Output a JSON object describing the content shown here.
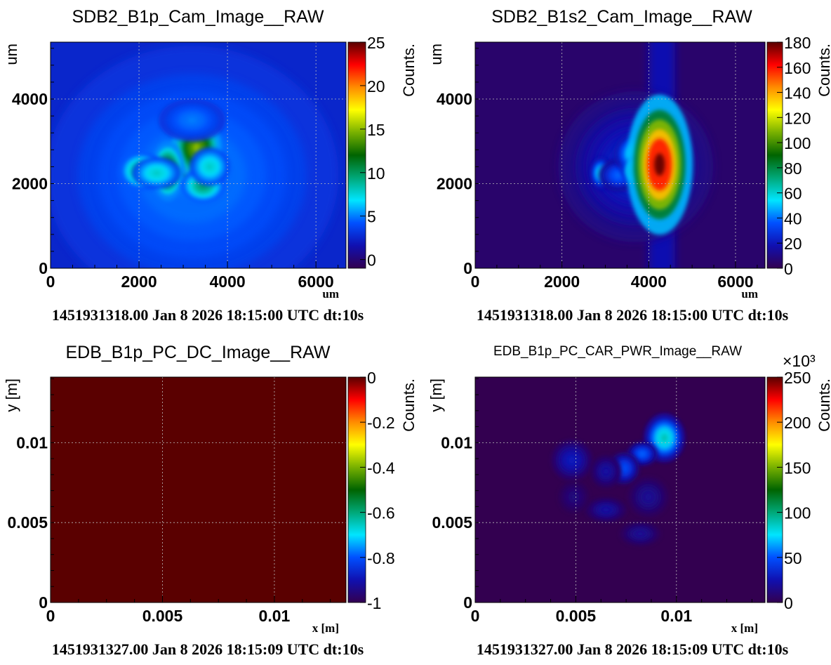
{
  "colormap": [
    "#330050",
    "#1010b0",
    "#0050ff",
    "#00e5ff",
    "#00a878",
    "#006400",
    "#78b000",
    "#ffff00",
    "#ff8c00",
    "#ff0000",
    "#5a0000"
  ],
  "chart_data": [
    {
      "type": "heatmap",
      "title": "SDB2_B1p_Cam_Image__RAW",
      "xlabel": "um",
      "ylabel": "um",
      "zlabel": "Counts.",
      "xlim": [
        0,
        6680
      ],
      "ylim": [
        0,
        5345
      ],
      "zlim": [
        -1,
        25
      ],
      "xticks": [
        0,
        2000,
        4000,
        6000
      ],
      "xtick_labels": [
        "0",
        "2000",
        "4000",
        "6000"
      ],
      "yticks": [
        0,
        2000,
        4000
      ],
      "ytick_labels": [
        "0",
        "2000",
        "4000"
      ],
      "zticks": [
        0,
        5,
        10,
        15,
        20,
        25
      ],
      "ztick_labels": [
        "0",
        "5",
        "10",
        "15",
        "20",
        "25"
      ],
      "background": 2.5,
      "grid": true,
      "peaks": [
        {
          "x": 3200,
          "y": 2200,
          "z": 5,
          "sx": 1300,
          "sy": 1200
        },
        {
          "x": 3100,
          "y": 2600,
          "z": 24,
          "sx": 180,
          "sy": 220
        },
        {
          "x": 3300,
          "y": 2850,
          "z": 15,
          "sx": 220,
          "sy": 300
        },
        {
          "x": 2650,
          "y": 2300,
          "z": 13,
          "sx": 150,
          "sy": 280
        },
        {
          "x": 2050,
          "y": 2300,
          "z": 10,
          "sx": 200,
          "sy": 180
        },
        {
          "x": 2400,
          "y": 2250,
          "z": 8,
          "sx": 220,
          "sy": 150
        },
        {
          "x": 3450,
          "y": 1950,
          "z": 10,
          "sx": 200,
          "sy": 160
        },
        {
          "x": 3600,
          "y": 2400,
          "z": 8,
          "sx": 180,
          "sy": 180
        },
        {
          "x": 3200,
          "y": 3500,
          "z": 5,
          "sx": 300,
          "sy": 200
        }
      ],
      "footer": "1451931318.00 Jan 8 2026 18:15:00 UTC dt:10s"
    },
    {
      "type": "heatmap",
      "title": "SDB2_B1s2_Cam_Image__RAW",
      "xlabel": "um",
      "ylabel": "um",
      "zlabel": "Counts.",
      "xlim": [
        0,
        6680
      ],
      "ylim": [
        0,
        5345
      ],
      "zlim": [
        0,
        180
      ],
      "xticks": [
        0,
        2000,
        4000,
        6000
      ],
      "xtick_labels": [
        "0",
        "2000",
        "4000",
        "6000"
      ],
      "yticks": [
        0,
        2000,
        4000
      ],
      "ytick_labels": [
        "0",
        "2000",
        "4000"
      ],
      "zticks": [
        0,
        20,
        40,
        60,
        80,
        100,
        120,
        140,
        160,
        180
      ],
      "ztick_labels": [
        "0",
        "20",
        "40",
        "60",
        "80",
        "100",
        "120",
        "140",
        "160",
        "180"
      ],
      "background": 5,
      "grid": true,
      "band": {
        "x": 4300,
        "sx": 300,
        "z": 18
      },
      "peaks": [
        {
          "x": 3700,
          "y": 2400,
          "z": 25,
          "sx": 700,
          "sy": 700
        },
        {
          "x": 2900,
          "y": 2250,
          "z": 60,
          "sx": 100,
          "sy": 150
        },
        {
          "x": 3300,
          "y": 2200,
          "z": 40,
          "sx": 180,
          "sy": 150
        },
        {
          "x": 3700,
          "y": 2700,
          "z": 60,
          "sx": 200,
          "sy": 200
        },
        {
          "x": 3850,
          "y": 2300,
          "z": 100,
          "sx": 200,
          "sy": 150
        },
        {
          "x": 4250,
          "y": 2450,
          "z": 180,
          "sx": 300,
          "sy": 650
        }
      ],
      "footer": "1451931318.00 Jan 8 2026 18:15:00 UTC dt:10s"
    },
    {
      "type": "heatmap",
      "title": "EDB_B1p_PC_DC_Image__RAW",
      "xlabel": "x [m]",
      "ylabel": "y [m]",
      "zlabel": "Counts.",
      "xlim": [
        0,
        0.0132
      ],
      "ylim": [
        0,
        0.0141
      ],
      "zlim": [
        -1,
        0
      ],
      "xticks": [
        0,
        0.005,
        0.01
      ],
      "xtick_labels": [
        "0",
        "0.005",
        "0.01"
      ],
      "yticks": [
        0,
        0.005,
        0.01
      ],
      "ytick_labels": [
        "0",
        "0.005",
        "0.01"
      ],
      "zticks": [
        -1,
        -0.8,
        -0.6,
        -0.4,
        -0.2,
        0
      ],
      "ztick_labels": [
        "-1",
        "-0.8",
        "-0.6",
        "-0.4",
        "-0.2",
        "0"
      ],
      "background": 0,
      "grid": true,
      "peaks": [],
      "footer": "1451931327.00 Jan 8 2026 18:15:09 UTC dt:10s"
    },
    {
      "type": "heatmap",
      "title": "EDB_B1p_PC_CAR_PWR_Image__RAW",
      "xlabel": "x [m]",
      "ylabel": "y [m]",
      "zlabel": "Counts.",
      "zexponent": "×10³",
      "xlim": [
        0,
        0.0144
      ],
      "ylim": [
        0,
        0.0141
      ],
      "zlim": [
        0,
        250
      ],
      "xticks": [
        0,
        0.005,
        0.01
      ],
      "xtick_labels": [
        "0",
        "0.005",
        "0.01"
      ],
      "yticks": [
        0,
        0.005,
        0.01
      ],
      "ytick_labels": [
        "0",
        "0.005",
        "0.01"
      ],
      "zticks": [
        0,
        50,
        100,
        150,
        200,
        250
      ],
      "ztick_labels": [
        "0",
        "50",
        "100",
        "150",
        "200",
        "250"
      ],
      "background": 0,
      "grid": true,
      "peaks": [
        {
          "x": 0.0094,
          "y": 0.0103,
          "z": 90,
          "sx": 0.0004,
          "sy": 0.0006
        },
        {
          "x": 0.0083,
          "y": 0.0093,
          "z": 55,
          "sx": 0.0003,
          "sy": 0.0003
        },
        {
          "x": 0.0074,
          "y": 0.0084,
          "z": 50,
          "sx": 0.0003,
          "sy": 0.0004
        },
        {
          "x": 0.0048,
          "y": 0.0089,
          "z": 30,
          "sx": 0.0004,
          "sy": 0.0005
        },
        {
          "x": 0.0065,
          "y": 0.0082,
          "z": 22,
          "sx": 0.0003,
          "sy": 0.0004
        },
        {
          "x": 0.0065,
          "y": 0.0058,
          "z": 22,
          "sx": 0.0004,
          "sy": 0.0003
        },
        {
          "x": 0.0086,
          "y": 0.0066,
          "z": 18,
          "sx": 0.0004,
          "sy": 0.0005
        },
        {
          "x": 0.0082,
          "y": 0.0043,
          "z": 18,
          "sx": 0.0004,
          "sy": 0.0003
        },
        {
          "x": 0.0049,
          "y": 0.0066,
          "z": 12,
          "sx": 0.0003,
          "sy": 0.0004
        }
      ],
      "footer": "1451931327.00 Jan 8 2026 18:15:09 UTC dt:10s"
    }
  ]
}
